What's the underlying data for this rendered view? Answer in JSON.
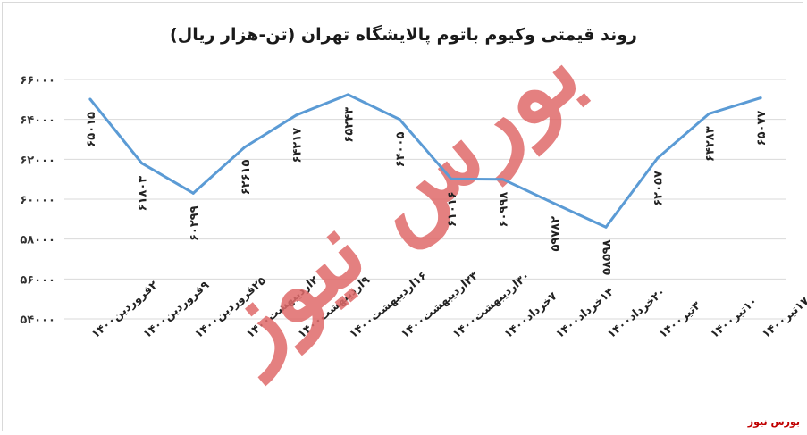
{
  "chart_data": {
    "type": "line",
    "title": "روند قیمتی وکیوم باتوم پالایشگاه تهران (تن-هزار ریال)",
    "categories": [
      "۲فروردین۱۴۰۰",
      "۹فروردین۱۴۰۰",
      "۲۵فروردین۱۴۰۰",
      "۲اردیبهشت۱۴۰۰",
      "۹اردیبهشت۱۴۰۰",
      "۱۶اردیبهشت۱۴۰۰",
      "۲۳اردیبهشت۱۴۰۰",
      "۳۰اردیبهشت۱۴۰۰",
      "۷خرداد۱۴۰۰",
      "۱۴خرداد۱۴۰۰",
      "۲۰خرداد۱۴۰۰",
      "۳تیر۱۴۰۰",
      "۱۰تیر۱۴۰۰",
      "۱۷تیر۱۴۰۰"
    ],
    "values": [
      65015,
      61803,
      60299,
      62615,
      64217,
      65243,
      64005,
      61016,
      60998,
      59782,
      58598,
      62057,
      64283,
      65077
    ],
    "value_labels": [
      "۶۵۰۱۵",
      "۶۱۸۰۳",
      "۶۰۲۹۹",
      "۶۲۶۱۵",
      "۶۴۲۱۷",
      "۶۵۲۴۳",
      "۶۴۰۰۵",
      "۶۱۰۱۶",
      "۶۰۹۹۸",
      "۵۹۷۸۲",
      "۵۸۵۹۸",
      "۶۲۰۵۷",
      "۶۴۲۸۳",
      "۶۵۰۷۷"
    ],
    "yticks": [
      54000,
      56000,
      58000,
      60000,
      62000,
      64000,
      66000
    ],
    "ytick_labels": [
      "۵۴۰۰۰",
      "۵۶۰۰۰",
      "۵۸۰۰۰",
      "۶۰۰۰۰",
      "۶۲۰۰۰",
      "۶۴۰۰۰",
      "۶۶۰۰۰"
    ],
    "ylim": [
      54000,
      66000
    ],
    "grid": true,
    "line_color": "#5b9bd5",
    "grid_color": "#d9d9d9"
  },
  "watermark": {
    "text": "بورس نیوز",
    "color": "#e06a6a"
  },
  "source_label": "بورس نیوز"
}
